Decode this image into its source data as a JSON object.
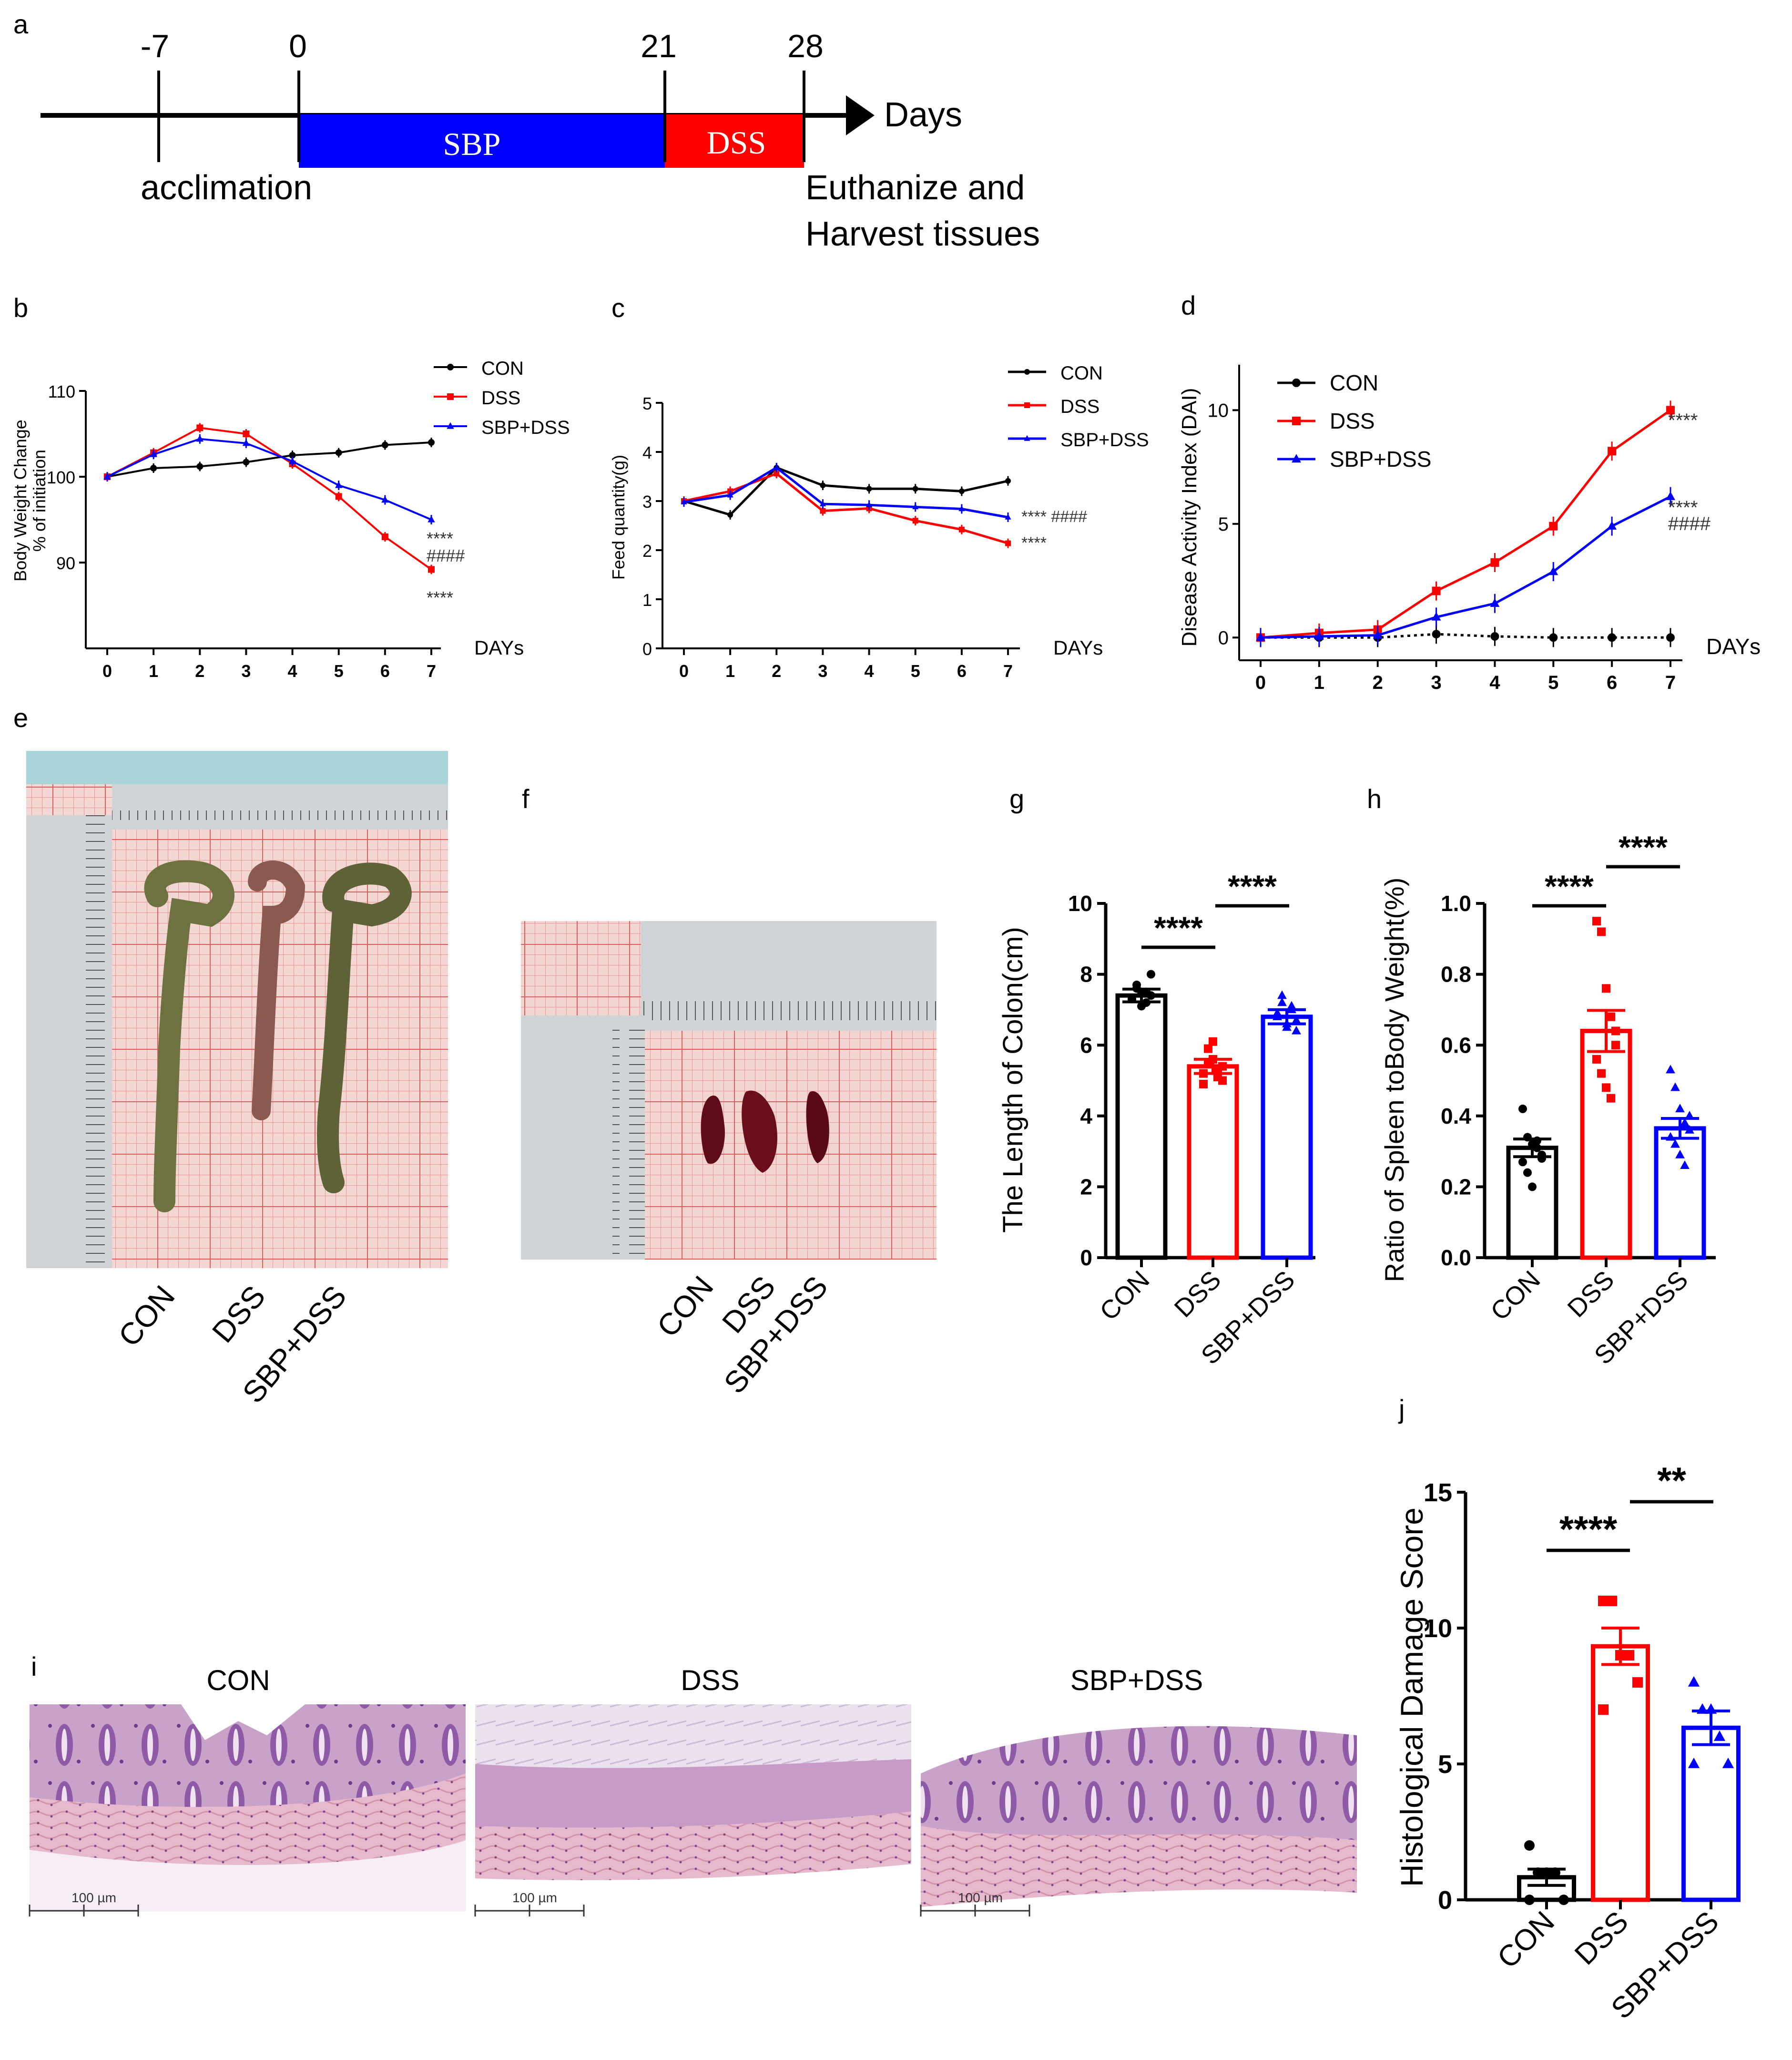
{
  "panel_labels": {
    "a": "a",
    "b": "b",
    "c": "c",
    "d": "d",
    "e": "e",
    "f": "f",
    "g": "g",
    "h": "h",
    "i": "i",
    "j": "j"
  },
  "colors": {
    "con": "#000000",
    "dss": "#ff0000",
    "sbp": "#0000ff"
  },
  "timeline": {
    "ticks": [
      "-7",
      "0",
      "21",
      "28"
    ],
    "bars": [
      "SBP",
      "DSS"
    ],
    "arrow_label": "Days",
    "below": {
      "acclimation": "acclimation",
      "euth1": "Euthanize and",
      "euth2": "Harvest tissues"
    }
  },
  "photo_e": {
    "labels": [
      "CON",
      "DSS",
      "SBP+DSS"
    ]
  },
  "photo_f": {
    "labels": [
      "CON",
      "DSS",
      "SBP+DSS"
    ]
  },
  "histology": {
    "titles": [
      "CON",
      "DSS",
      "SBP+DSS"
    ],
    "scale_label": "100 µm"
  },
  "chart_data": [
    {
      "id": "b",
      "type": "line",
      "ylabel_lines": [
        "Body Weight Change",
        "% of initiation"
      ],
      "xlabel": "DAYs",
      "x": [
        0,
        1,
        2,
        3,
        4,
        5,
        6,
        7
      ],
      "ylim": [
        80,
        110
      ],
      "yticks": [
        90,
        100,
        110
      ],
      "xticks": [
        "0",
        "1",
        "2",
        "3",
        "4",
        "5",
        "6",
        "7"
      ],
      "legend": [
        "CON",
        "DSS",
        "SBP+DSS"
      ],
      "series": [
        {
          "name": "CON",
          "values": [
            100,
            101,
            101.2,
            101.7,
            102.5,
            102.8,
            103.7,
            104
          ]
        },
        {
          "name": "DSS",
          "values": [
            100,
            102.8,
            105.7,
            105.0,
            101.5,
            97.7,
            93.0,
            89.2
          ]
        },
        {
          "name": "SBP+DSS",
          "values": [
            100,
            102.6,
            104.4,
            103.9,
            101.8,
            99.0,
            97.3,
            95.0
          ]
        }
      ],
      "annotations": [
        "****",
        "####",
        "****"
      ]
    },
    {
      "id": "c",
      "type": "line",
      "ylabel": "Feed quantity(g)",
      "xlabel": "DAYs",
      "x": [
        0,
        1,
        2,
        3,
        4,
        5,
        6,
        7
      ],
      "ylim": [
        0,
        5
      ],
      "yticks": [
        0,
        1,
        2,
        3,
        4,
        5
      ],
      "xticks": [
        "0",
        "1",
        "2",
        "3",
        "4",
        "5",
        "6",
        "7"
      ],
      "legend": [
        "CON",
        "DSS",
        "SBP+DSS"
      ],
      "series": [
        {
          "name": "CON",
          "values": [
            3.0,
            2.72,
            3.68,
            3.32,
            3.25,
            3.25,
            3.2,
            3.41
          ]
        },
        {
          "name": "DSS",
          "values": [
            3.0,
            3.2,
            3.56,
            2.8,
            2.85,
            2.6,
            2.42,
            2.14
          ]
        },
        {
          "name": "SBP+DSS",
          "values": [
            2.98,
            3.12,
            3.68,
            2.94,
            2.92,
            2.88,
            2.84,
            2.67
          ]
        }
      ],
      "annotations": [
        "**** ####",
        "****"
      ]
    },
    {
      "id": "d",
      "type": "line",
      "ylabel": "Disease Activity Index  (DAI)",
      "xlabel": "DAYs",
      "x": [
        0,
        1,
        2,
        3,
        4,
        5,
        6,
        7
      ],
      "ylim": [
        -1,
        12
      ],
      "yticks": [
        0,
        5,
        10
      ],
      "xticks": [
        "0",
        "1",
        "2",
        "3",
        "4",
        "5",
        "6",
        "7"
      ],
      "legend": [
        "CON",
        "DSS",
        "SBP+DSS"
      ],
      "series": [
        {
          "name": "CON",
          "values": [
            0,
            0,
            0,
            0.15,
            0.05,
            0,
            0,
            0
          ]
        },
        {
          "name": "DSS",
          "values": [
            0,
            0.2,
            0.35,
            2.05,
            3.3,
            4.9,
            8.2,
            10.0
          ]
        },
        {
          "name": "SBP+DSS",
          "values": [
            0,
            0.05,
            0.1,
            0.9,
            1.5,
            2.9,
            4.9,
            6.2
          ]
        }
      ],
      "annotations": [
        "****",
        "****",
        "####"
      ]
    },
    {
      "id": "g",
      "type": "bar",
      "ylabel": "The Length of Colon(cm)",
      "categories": [
        "CON",
        "DSS",
        "SBP+DSS"
      ],
      "values": [
        7.4,
        5.4,
        6.8
      ],
      "errors": [
        0.18,
        0.2,
        0.2
      ],
      "ylim": [
        0,
        10
      ],
      "yticks": [
        "0",
        "2",
        "4",
        "6",
        "8",
        "10"
      ],
      "points": [
        [
          7.3,
          7.6,
          7.5,
          7.2,
          7.4,
          7.3,
          7.7,
          7.1,
          7.5,
          8.0
        ],
        [
          5.2,
          5.9,
          5.6,
          5.1,
          5.4,
          4.9,
          5.5,
          6.1,
          5.3,
          5.0
        ],
        [
          6.8,
          7.2,
          6.5,
          7.0,
          6.4,
          6.9,
          7.4,
          6.6,
          7.1,
          6.7
        ]
      ],
      "significance": [
        "****",
        "****"
      ]
    },
    {
      "id": "h",
      "type": "bar",
      "ylabel": "Ratio of Spleen toBody Weight(%)",
      "categories": [
        "CON",
        "DSS",
        "SBP+DSS"
      ],
      "values": [
        0.31,
        0.64,
        0.365
      ],
      "errors": [
        0.025,
        0.058,
        0.028
      ],
      "ylim": [
        0,
        1.0
      ],
      "yticks": [
        "0.0",
        "0.2",
        "0.4",
        "0.6",
        "0.8",
        "1.0"
      ],
      "points": [
        [
          0.42,
          0.34,
          0.32,
          0.31,
          0.29,
          0.27,
          0.24,
          0.2,
          0.33,
          0.28
        ],
        [
          0.95,
          0.92,
          0.76,
          0.68,
          0.64,
          0.56,
          0.52,
          0.48,
          0.45,
          0.6
        ],
        [
          0.53,
          0.48,
          0.42,
          0.38,
          0.36,
          0.34,
          0.32,
          0.29,
          0.26,
          0.4
        ]
      ],
      "significance": [
        "****",
        "****"
      ]
    },
    {
      "id": "j",
      "type": "bar",
      "ylabel": "Histological Damage Score",
      "categories": [
        "CON",
        "DSS",
        "SBP+DSS"
      ],
      "values": [
        0.83,
        9.33,
        6.33
      ],
      "errors": [
        0.3,
        0.67,
        0.62
      ],
      "ylim": [
        0,
        15
      ],
      "yticks": [
        "0",
        "5",
        "10",
        "15"
      ],
      "points": [
        [
          2,
          1,
          1,
          1,
          0,
          0
        ],
        [
          11,
          11,
          9,
          9,
          8,
          7
        ],
        [
          8,
          7,
          7,
          6,
          5,
          5
        ]
      ],
      "significance": [
        "****",
        "**"
      ]
    }
  ]
}
